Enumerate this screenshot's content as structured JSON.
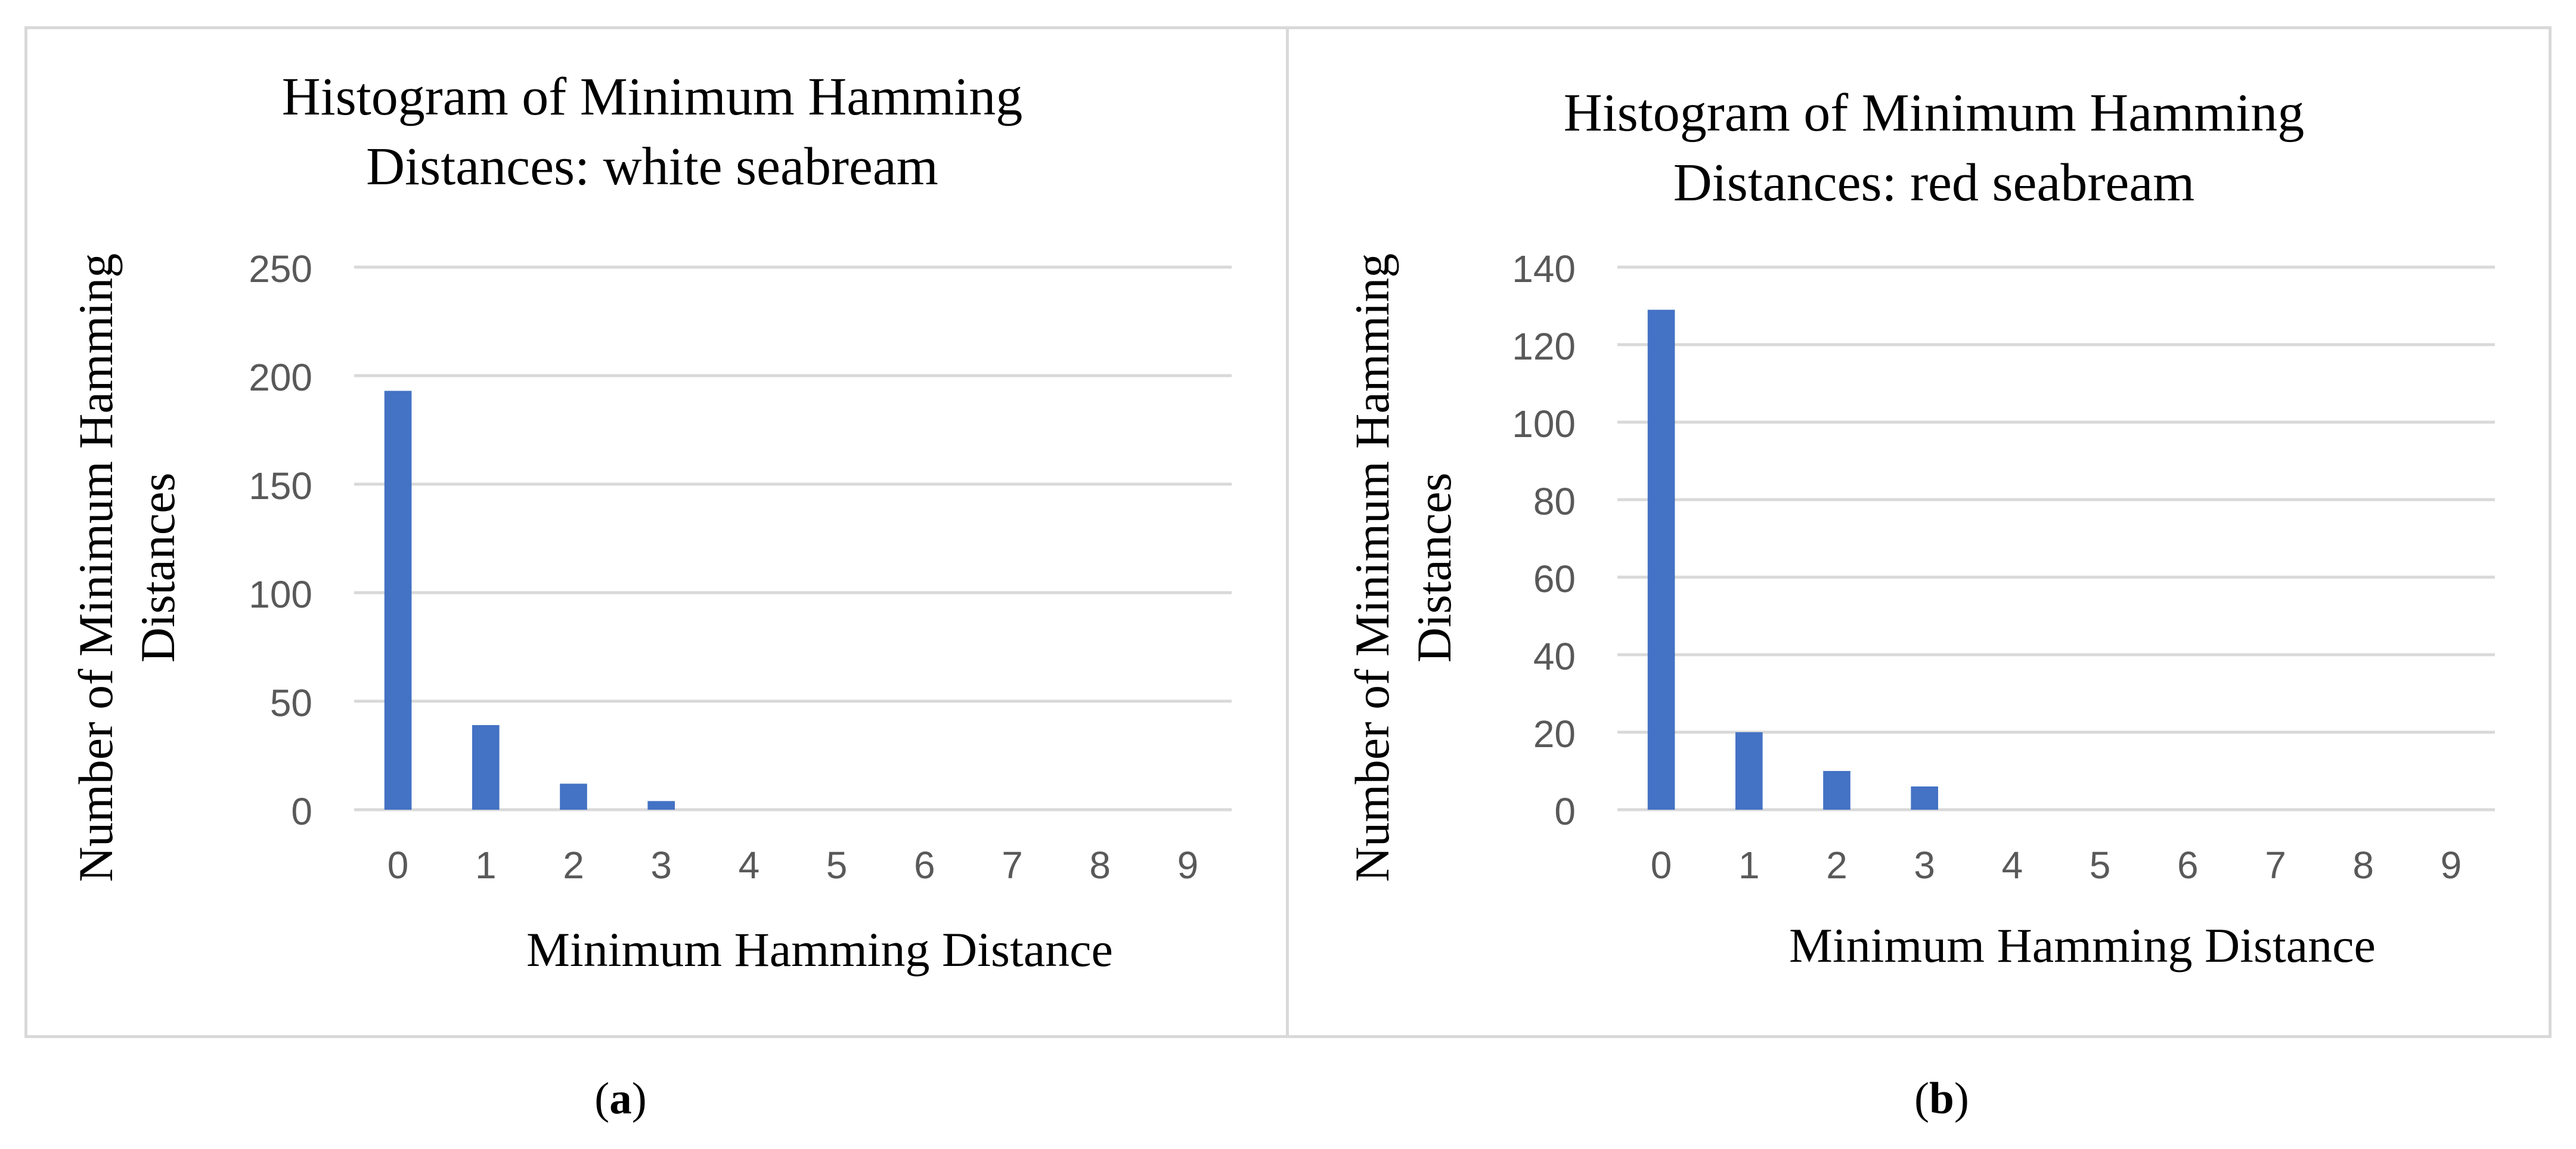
{
  "colors": {
    "bar": "#4472c4",
    "grid": "#d9d9d9",
    "tick_text": "#595959",
    "border": "#d9d9d9"
  },
  "captions": {
    "a": "a",
    "b": "b"
  },
  "chart_data": [
    {
      "type": "bar",
      "title_lines": [
        "Histogram of Minimum Hamming",
        "Distances: white seabream"
      ],
      "xlabel": "Minimum Hamming Distance",
      "ylabel_lines": [
        "Number of Minimum Hamming",
        "Distances"
      ],
      "categories": [
        "0",
        "1",
        "2",
        "3",
        "4",
        "5",
        "6",
        "7",
        "8",
        "9"
      ],
      "values": [
        193,
        39,
        12,
        4,
        0,
        0,
        0,
        0,
        0,
        0
      ],
      "ylim": [
        0,
        250
      ],
      "yticks": [
        0,
        50,
        100,
        150,
        200,
        250
      ],
      "grid": true,
      "legend": "none"
    },
    {
      "type": "bar",
      "title_lines": [
        "Histogram of Minimum Hamming",
        "Distances: red seabream"
      ],
      "xlabel": "Minimum Hamming Distance",
      "ylabel_lines": [
        "Number of Minimum Hamming",
        "Distances"
      ],
      "categories": [
        "0",
        "1",
        "2",
        "3",
        "4",
        "5",
        "6",
        "7",
        "8",
        "9"
      ],
      "values": [
        129,
        20,
        10,
        6,
        0,
        0,
        0,
        0,
        0,
        0
      ],
      "ylim": [
        0,
        140
      ],
      "yticks": [
        0,
        20,
        40,
        60,
        80,
        100,
        120,
        140
      ],
      "grid": true,
      "legend": "none"
    }
  ]
}
